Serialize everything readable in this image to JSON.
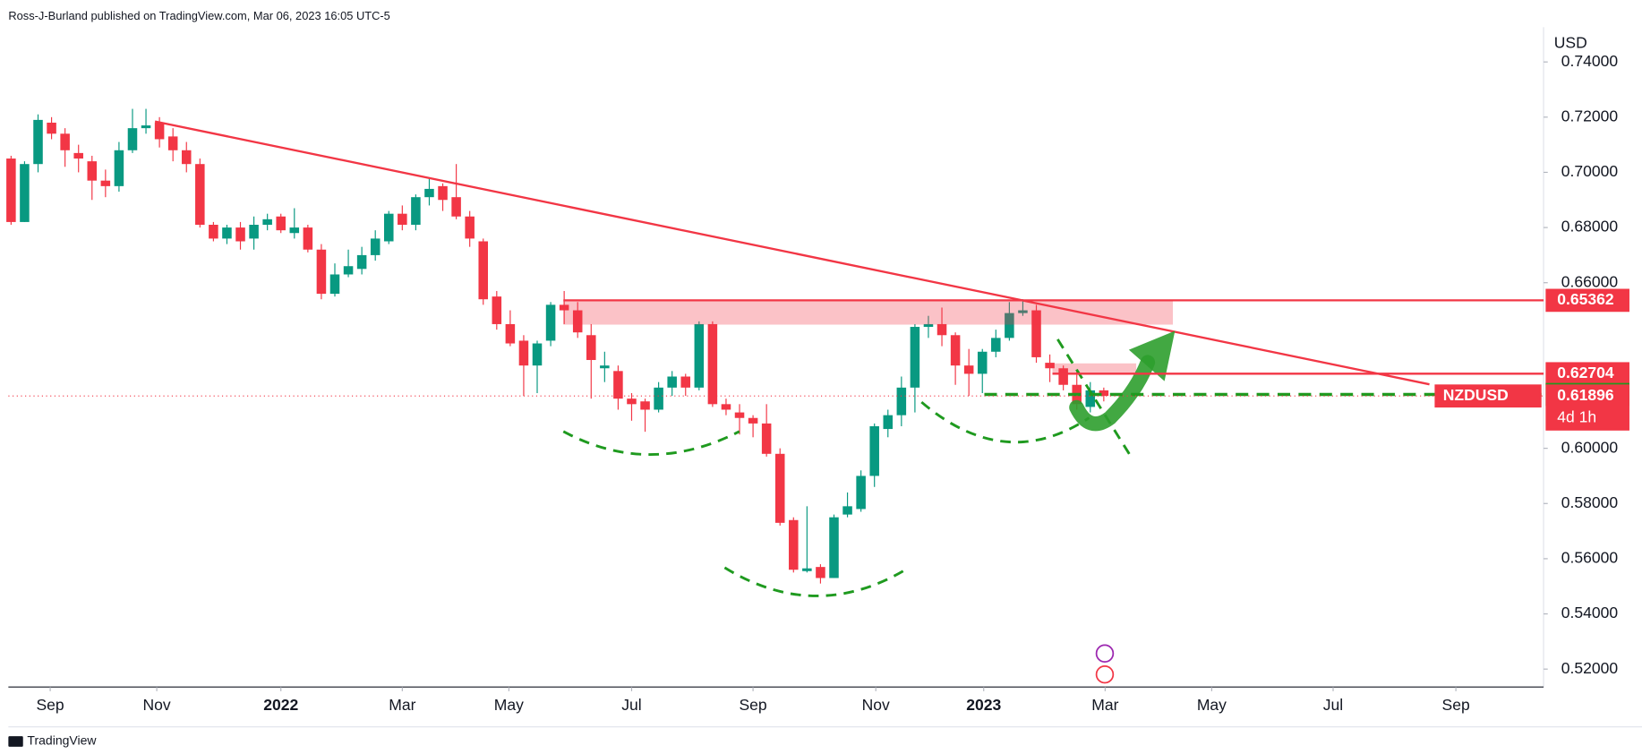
{
  "chart_data": {
    "type": "candlestick",
    "title": "Ross-J-Burland published on TradingView.com, Mar 06, 2023 16:05 UTC-5",
    "source": "TradingView",
    "currency": "USD",
    "up_color": "#089981",
    "down_color": "#f23645",
    "x": [
      -20,
      -19,
      -18,
      -17,
      -16,
      -15,
      -14,
      -13,
      -12,
      -11,
      -10,
      -9,
      -8,
      -7,
      -6,
      -5,
      -4,
      -3,
      -2,
      -1,
      0,
      1,
      2,
      3,
      4,
      5,
      6,
      7,
      8,
      9,
      10,
      11,
      12,
      13,
      14,
      15,
      16,
      17,
      18,
      19,
      20,
      21,
      22,
      23,
      24,
      25,
      26,
      27,
      28,
      29,
      30,
      31,
      32,
      33,
      34,
      35,
      36,
      37,
      38,
      39,
      40,
      41,
      42,
      43,
      44,
      45,
      46,
      47,
      48,
      49,
      50,
      51,
      52,
      53,
      54,
      55,
      56,
      57,
      58,
      59,
      60,
      61
    ],
    "open": [
      0.705,
      0.682,
      0.703,
      0.718,
      0.714,
      0.707,
      0.704,
      0.697,
      0.695,
      0.708,
      0.716,
      0.718,
      0.713,
      0.708,
      0.703,
      0.681,
      0.676,
      0.68,
      0.676,
      0.681,
      0.684,
      0.678,
      0.68,
      0.672,
      0.656,
      0.663,
      0.665,
      0.67,
      0.675,
      0.685,
      0.681,
      0.691,
      0.695,
      0.691,
      0.684,
      0.675,
      0.655,
      0.645,
      0.639,
      0.63,
      0.639,
      0.652,
      0.65,
      0.641,
      0.629,
      0.628,
      0.618,
      0.617,
      0.614,
      0.622,
      0.626,
      0.622,
      0.645,
      0.616,
      0.613,
      0.611,
      0.609,
      0.598,
      0.574,
      0.5555,
      0.557,
      0.553,
      0.576,
      0.578,
      0.59,
      0.607,
      0.612,
      0.622,
      0.644,
      0.645,
      0.641,
      0.63,
      0.627,
      0.635,
      0.64,
      0.649,
      0.65,
      0.631,
      0.629,
      0.623,
      0.615,
      0.621
    ],
    "high": [
      0.706,
      0.704,
      0.721,
      0.72,
      0.716,
      0.71,
      0.706,
      0.701,
      0.711,
      0.723,
      0.723,
      0.72,
      0.716,
      0.711,
      0.705,
      0.682,
      0.681,
      0.682,
      0.684,
      0.685,
      0.685,
      0.687,
      0.681,
      0.674,
      0.667,
      0.672,
      0.673,
      0.679,
      0.686,
      0.688,
      0.692,
      0.698,
      0.696,
      0.703,
      0.686,
      0.676,
      0.657,
      0.65,
      0.641,
      0.639,
      0.653,
      0.657,
      0.653,
      0.645,
      0.635,
      0.63,
      0.62,
      0.618,
      0.624,
      0.628,
      0.627,
      0.646,
      0.646,
      0.618,
      0.616,
      0.612,
      0.616,
      0.6,
      0.575,
      0.579,
      0.558,
      0.576,
      0.584,
      0.592,
      0.609,
      0.614,
      0.626,
      0.645,
      0.648,
      0.651,
      0.642,
      0.636,
      0.636,
      0.643,
      0.653,
      0.654,
      0.652,
      0.634,
      0.63,
      0.628,
      0.624,
      0.622
    ],
    "low": [
      0.681,
      0.682,
      0.7,
      0.712,
      0.702,
      0.7,
      0.69,
      0.691,
      0.693,
      0.707,
      0.714,
      0.709,
      0.704,
      0.7,
      0.68,
      0.675,
      0.674,
      0.672,
      0.672,
      0.679,
      0.678,
      0.676,
      0.671,
      0.654,
      0.655,
      0.662,
      0.663,
      0.668,
      0.674,
      0.679,
      0.679,
      0.688,
      0.686,
      0.683,
      0.673,
      0.652,
      0.643,
      0.637,
      0.619,
      0.62,
      0.637,
      0.645,
      0.64,
      0.618,
      0.624,
      0.614,
      0.61,
      0.606,
      0.613,
      0.619,
      0.619,
      0.621,
      0.615,
      0.612,
      0.605,
      0.604,
      0.597,
      0.572,
      0.555,
      0.555,
      0.551,
      0.553,
      0.575,
      0.577,
      0.586,
      0.604,
      0.608,
      0.613,
      0.64,
      0.637,
      0.623,
      0.619,
      0.62,
      0.633,
      0.639,
      0.648,
      0.631,
      0.624,
      0.621,
      0.614,
      0.613,
      0.617
    ],
    "close": [
      0.682,
      0.703,
      0.719,
      0.714,
      0.708,
      0.705,
      0.697,
      0.695,
      0.708,
      0.716,
      0.717,
      0.712,
      0.708,
      0.703,
      0.681,
      0.676,
      0.68,
      0.675,
      0.681,
      0.683,
      0.679,
      0.68,
      0.672,
      0.656,
      0.663,
      0.666,
      0.67,
      0.676,
      0.685,
      0.681,
      0.691,
      0.694,
      0.69,
      0.684,
      0.676,
      0.654,
      0.645,
      0.638,
      0.63,
      0.638,
      0.652,
      0.65,
      0.642,
      0.632,
      0.63,
      0.618,
      0.616,
      0.614,
      0.622,
      0.626,
      0.622,
      0.645,
      0.616,
      0.614,
      0.611,
      0.609,
      0.598,
      0.573,
      0.556,
      0.5565,
      0.553,
      0.575,
      0.579,
      0.59,
      0.608,
      0.612,
      0.622,
      0.644,
      0.645,
      0.641,
      0.63,
      0.627,
      0.635,
      0.64,
      0.649,
      0.65,
      0.633,
      0.629,
      0.623,
      0.616,
      0.621,
      0.619
    ],
    "xlim": [
      -20.2,
      93.6
    ],
    "xticks": [
      {
        "value": -17.1,
        "label": "Sep"
      },
      {
        "value": -9.2,
        "label": "Nov"
      },
      {
        "value": 0,
        "label": "2022"
      },
      {
        "value": 9.0,
        "label": "Mar"
      },
      {
        "value": 16.9,
        "label": "May"
      },
      {
        "value": 26.0,
        "label": "Jul"
      },
      {
        "value": 35.0,
        "label": "Sep"
      },
      {
        "value": 44.1,
        "label": "Nov"
      },
      {
        "value": 52.1,
        "label": "2023"
      },
      {
        "value": 61.1,
        "label": "Mar"
      },
      {
        "value": 69.0,
        "label": "May"
      },
      {
        "value": 78.0,
        "label": "Jul"
      },
      {
        "value": 87.1,
        "label": "Sep"
      }
    ],
    "ylim": [
      0.5135,
      0.7526
    ],
    "yticks": [
      {
        "value": 0.52,
        "label": "0.52000"
      },
      {
        "value": 0.54,
        "label": "0.54000"
      },
      {
        "value": 0.56,
        "label": "0.56000"
      },
      {
        "value": 0.58,
        "label": "0.58000"
      },
      {
        "value": 0.6,
        "label": "0.60000"
      },
      {
        "value": 0.66,
        "label": "0.66000"
      },
      {
        "value": 0.68,
        "label": "0.68000"
      },
      {
        "value": 0.7,
        "label": "0.70000"
      },
      {
        "value": 0.72,
        "label": "0.72000"
      },
      {
        "value": 0.74,
        "label": "0.74000"
      }
    ],
    "price_levels": [
      {
        "value": 0.65362,
        "color": "#f23645"
      },
      {
        "value": 0.62704,
        "color": "#f23645"
      },
      {
        "value": 0.61951,
        "color": "#1f9a1f"
      }
    ],
    "last_price": {
      "symbol": "NZDUSD",
      "value": 0.61896,
      "countdown": "4d 1h",
      "color": "#f23645"
    }
  }
}
